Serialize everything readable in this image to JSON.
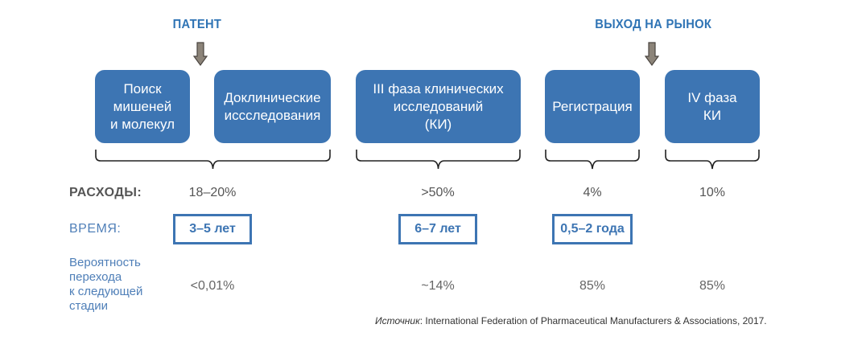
{
  "markers": {
    "patent": "ПАТЕНТ",
    "market": "ВЫХОД НА РЫНОК"
  },
  "stages": [
    {
      "label": "Поиск\nмишеней\nи молекул"
    },
    {
      "label": "Доклинические\nиссследования"
    },
    {
      "label": "III фаза клинических\nисследований\n(КИ)"
    },
    {
      "label": "Регистрация"
    },
    {
      "label": "IV фаза\nКИ"
    }
  ],
  "rows": {
    "costs_label": "РАСХОДЫ:",
    "time_label": "ВРЕМЯ:",
    "probability_label": "Вероятность\nперехода\nк следующей\nстадии"
  },
  "costs": [
    "18–20%",
    ">50%",
    "4%",
    "10%"
  ],
  "times": [
    "3–5 лет",
    "6–7 лет",
    "0,5–2 года"
  ],
  "probabilities": [
    "<0,01%",
    "~14%",
    "85%",
    "85%"
  ],
  "source": {
    "prefix": "Источник",
    "text": ": International Federation of Pharmaceutical Manufacturers & Associations, 2017."
  },
  "colors": {
    "stage_fill": "#3d75b3",
    "accent_blue": "#2f74b5",
    "arrow_fill": "#8c8479"
  }
}
